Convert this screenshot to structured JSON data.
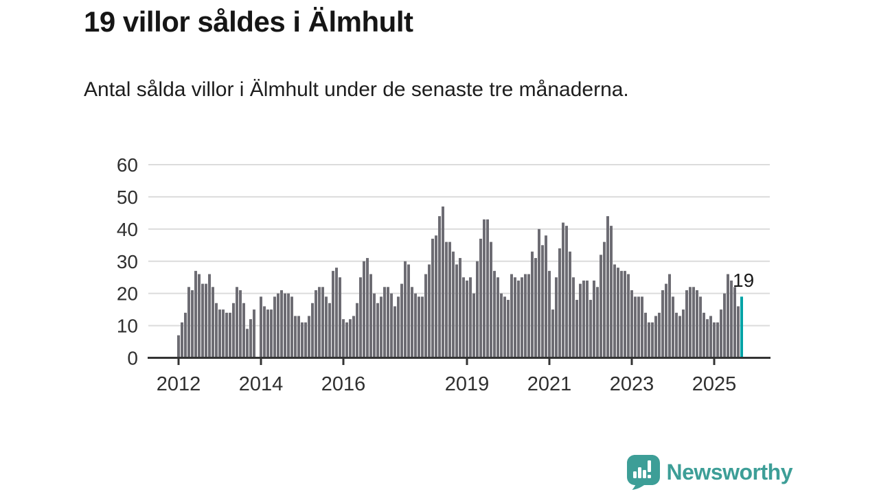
{
  "header": {
    "title": "19 villor såldes i Älmhult",
    "subtitle": "Antal sålda villor i Älmhult under de senaste tre månaderna."
  },
  "chart_data": {
    "type": "bar",
    "title": "19 villor såldes i Älmhult",
    "subtitle": "Antal sålda villor i Älmhult under de senaste tre månaderna.",
    "x_unit": "month",
    "x_start": "2012-01",
    "x_end": "2025-09",
    "ylim": [
      0,
      60
    ],
    "yticks": [
      0,
      10,
      20,
      30,
      40,
      50,
      60
    ],
    "xticks": [
      {
        "label": "2012",
        "month_index": 0
      },
      {
        "label": "2014",
        "month_index": 24
      },
      {
        "label": "2016",
        "month_index": 48
      },
      {
        "label": "2019",
        "month_index": 84
      },
      {
        "label": "2021",
        "month_index": 108
      },
      {
        "label": "2023",
        "month_index": 132
      },
      {
        "label": "2025",
        "month_index": 156
      }
    ],
    "grid": true,
    "legend": false,
    "values": [
      7,
      11,
      14,
      22,
      21,
      27,
      26,
      23,
      23,
      26,
      22,
      17,
      15,
      15,
      14,
      14,
      17,
      22,
      21,
      17,
      9,
      12,
      15,
      0,
      19,
      16,
      15,
      15,
      19,
      20,
      21,
      20,
      20,
      19,
      13,
      13,
      11,
      11,
      13,
      17,
      21,
      22,
      22,
      19,
      17,
      27,
      28,
      25,
      12,
      11,
      12,
      13,
      17,
      25,
      30,
      31,
      26,
      20,
      17,
      19,
      22,
      22,
      20,
      16,
      19,
      23,
      30,
      29,
      22,
      20,
      19,
      19,
      26,
      29,
      37,
      38,
      44,
      47,
      36,
      36,
      33,
      29,
      31,
      25,
      24,
      25,
      20,
      30,
      37,
      43,
      43,
      36,
      27,
      25,
      20,
      19,
      18,
      26,
      25,
      24,
      25,
      26,
      26,
      33,
      31,
      40,
      35,
      38,
      27,
      15,
      25,
      34,
      42,
      41,
      33,
      25,
      18,
      23,
      24,
      24,
      18,
      24,
      22,
      32,
      36,
      44,
      41,
      29,
      28,
      27,
      27,
      26,
      21,
      19,
      19,
      19,
      14,
      11,
      11,
      13,
      14,
      21,
      23,
      26,
      19,
      14,
      13,
      15,
      21,
      22,
      22,
      21,
      19,
      14,
      12,
      13,
      11,
      11,
      15,
      20,
      26,
      24,
      22,
      16,
      19
    ],
    "highlight": {
      "index": 164,
      "value": 19,
      "label": "19"
    },
    "colors": {
      "bar": "#6d6c73",
      "highlight": "#00a3a6",
      "grid": "#dcdcdc",
      "axis": "#333333",
      "tick_text": "#2f2f2f",
      "annotation_text": "#1a1a1a"
    }
  },
  "footer": {
    "brand": "Newsworthy",
    "brand_color": "#3d9e97",
    "logo_icon": "bar-chart-speech-bubble-icon"
  }
}
